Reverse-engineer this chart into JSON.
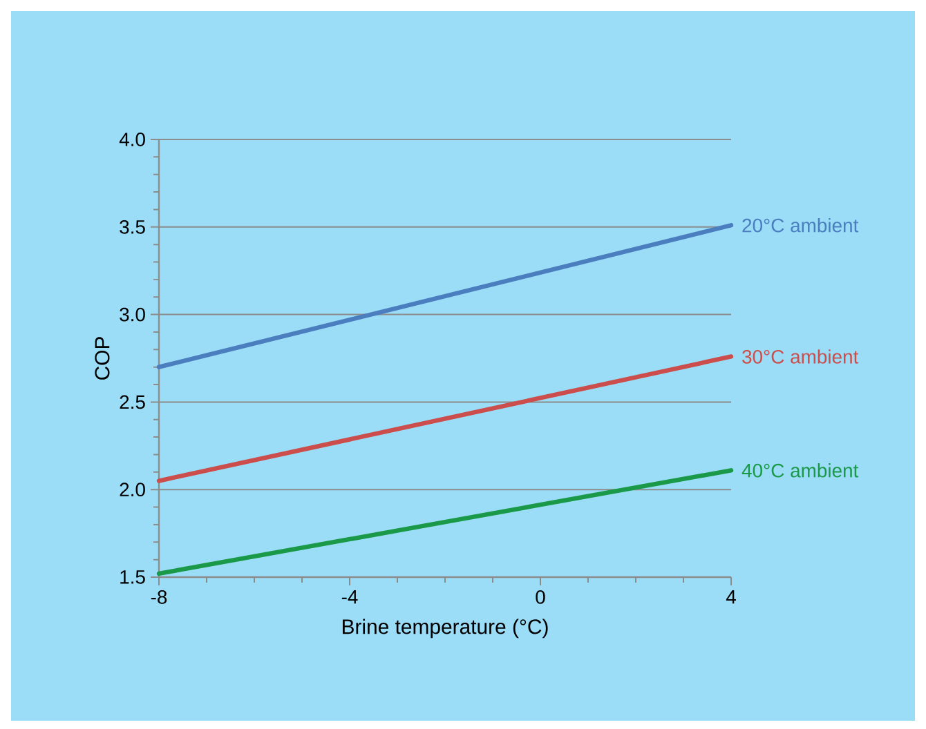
{
  "chart_data": {
    "type": "line",
    "xlabel": "Brine temperature (°C)",
    "ylabel": "COP",
    "x": [
      -8,
      4
    ],
    "xlim": [
      -8,
      4
    ],
    "xticks": [
      -8,
      -4,
      0,
      4
    ],
    "ylim": [
      1.5,
      4.0
    ],
    "yticks": [
      {
        "value": 1.5,
        "label": "1.5"
      },
      {
        "value": 2.0,
        "label": "2.0"
      },
      {
        "value": 2.5,
        "label": "2.5"
      },
      {
        "value": 3.0,
        "label": "3.0"
      },
      {
        "value": 3.5,
        "label": "3.5"
      },
      {
        "value": 4.0,
        "label": "4.0"
      }
    ],
    "grid": "y",
    "legend": false,
    "marker": "none",
    "line_style": "solid",
    "series": [
      {
        "name": "20°C ambient",
        "color": "#4a7ebf",
        "values": [
          2.7,
          3.51
        ]
      },
      {
        "name": "30°C ambient",
        "color": "#cc4e4c",
        "values": [
          2.05,
          2.76
        ]
      },
      {
        "name": "40°C ambient",
        "color": "#1a9a48",
        "values": [
          1.52,
          2.11
        ]
      }
    ]
  }
}
